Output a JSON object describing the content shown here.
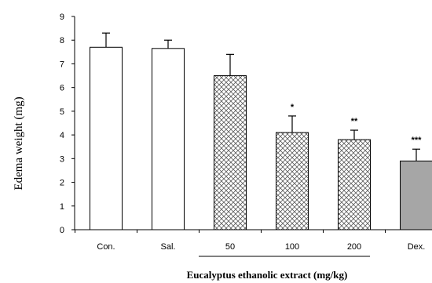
{
  "chart_data": {
    "type": "bar",
    "ylabel": "Edema weight (mg)",
    "xlabel": "Eucalyptus ethanolic extract (mg/kg)",
    "ylim": [
      0,
      9
    ],
    "yticks": [
      "0",
      "1",
      "2",
      "3",
      "4",
      "5",
      "6",
      "7",
      "8",
      "9"
    ],
    "grid": false,
    "categories": [
      "Con.",
      "Sal.",
      "50",
      "100",
      "200",
      "Dex."
    ],
    "values": [
      7.7,
      7.65,
      6.5,
      4.1,
      3.8,
      2.9
    ],
    "errors": [
      0.6,
      0.35,
      0.9,
      0.7,
      0.4,
      0.5
    ],
    "significance": [
      "",
      "",
      "",
      "*",
      "**",
      "***"
    ],
    "bar_styles": [
      "white",
      "white",
      "crosshatch",
      "crosshatch",
      "crosshatch",
      "gray"
    ],
    "bracket_categories": [
      "50",
      "100",
      "200"
    ],
    "colors": {
      "gray": "#a6a6a6",
      "white": "#ffffff",
      "axis": "#000000"
    }
  }
}
